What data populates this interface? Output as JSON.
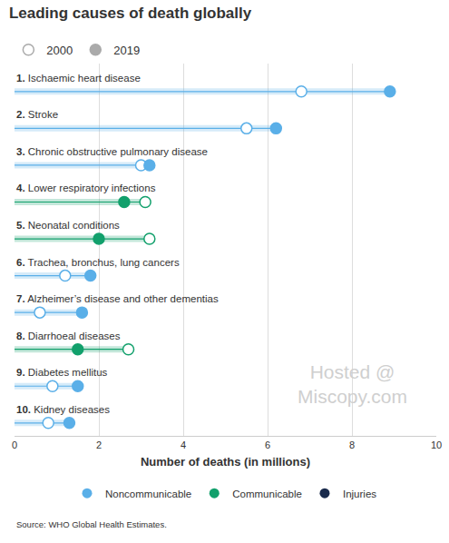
{
  "chart_data": {
    "type": "dumbbell",
    "title": "Leading causes of death globally",
    "orientation": "horizontal",
    "categories": [
      "1. Ischaemic heart disease",
      "2. Stroke",
      "3. Chronic obstructive pulmonary disease",
      "4. Lower respiratory infections",
      "5. Neonatal conditions",
      "6. Trachea, bronchus, lung cancers",
      "7. Alzheimer’s disease and other dementias",
      "8. Diarrhoeal diseases",
      "9. Diabetes mellitus",
      "10. Kidney diseases"
    ],
    "colors": [
      "#5aafe8",
      "#5aafe8",
      "#5aafe8",
      "#12a06c",
      "#12a06c",
      "#5aafe8",
      "#5aafe8",
      "#12a06c",
      "#5aafe8",
      "#5aafe8"
    ],
    "series": [
      {
        "name": "2000",
        "marker": "open",
        "values": [
          6.8,
          5.5,
          3.0,
          3.1,
          3.2,
          1.2,
          0.6,
          2.7,
          0.9,
          0.8
        ]
      },
      {
        "name": "2019",
        "marker": "filled",
        "values": [
          8.9,
          6.2,
          3.2,
          2.6,
          2.0,
          1.8,
          1.6,
          1.5,
          1.5,
          1.3
        ]
      }
    ],
    "groups": [
      {
        "name": "Noncommunicable",
        "color": "#5aafe8"
      },
      {
        "name": "Communicable",
        "color": "#12a06c"
      },
      {
        "name": "Injuries",
        "color": "#1a2b4c"
      }
    ],
    "xlabel": "Number of deaths (in millions)",
    "xlim": [
      0,
      10
    ],
    "xticks": [
      0,
      2,
      4,
      6,
      8,
      10
    ],
    "grid": true,
    "source": "Source: WHO Global Health Estimates.",
    "watermark": [
      "Hosted @",
      "Miscopy.com"
    ]
  }
}
